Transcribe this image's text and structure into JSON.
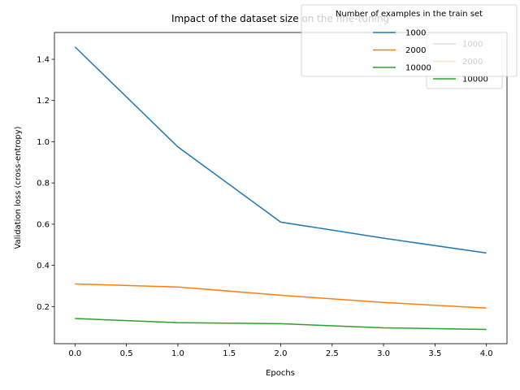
{
  "chart_data": {
    "type": "line",
    "title": "Impact of the dataset size on the fine-tuning",
    "xlabel": "Epochs",
    "ylabel": "Validation loss (cross-entropy)",
    "xlim": [
      -0.2,
      4.2
    ],
    "ylim": [
      0.02,
      1.53
    ],
    "xticks": [
      0.0,
      0.5,
      1.0,
      1.5,
      2.0,
      2.5,
      3.0,
      3.5,
      4.0
    ],
    "xtick_labels": [
      "0.0",
      "0.5",
      "1.0",
      "1.5",
      "2.0",
      "2.5",
      "3.0",
      "3.5",
      "4.0"
    ],
    "yticks": [
      0.2,
      0.4,
      0.6,
      0.8,
      1.0,
      1.2,
      1.4
    ],
    "ytick_labels": [
      "0.2",
      "0.4",
      "0.6",
      "0.8",
      "1.0",
      "1.2",
      "1.4"
    ],
    "x": [
      0,
      1,
      2,
      3,
      4
    ],
    "series": [
      {
        "name": "1000",
        "color": "#1f77b4",
        "values": [
          1.46,
          0.975,
          0.61,
          0.532,
          0.46
        ]
      },
      {
        "name": "2000",
        "color": "#ff7f0e",
        "values": [
          0.31,
          0.295,
          0.255,
          0.22,
          0.193
        ]
      },
      {
        "name": "10000",
        "color": "#2ca02c",
        "values": [
          0.142,
          0.122,
          0.117,
          0.097,
          0.089
        ]
      }
    ],
    "legends": [
      {
        "position": "upper-right",
        "title": "",
        "entries": [
          "1000",
          "2000",
          "10000"
        ]
      },
      {
        "position": "top-right (overlapping title)",
        "title": "Number of examples in the train set",
        "entries": [
          "1000",
          "2000",
          "10000"
        ]
      }
    ],
    "grid": false
  }
}
